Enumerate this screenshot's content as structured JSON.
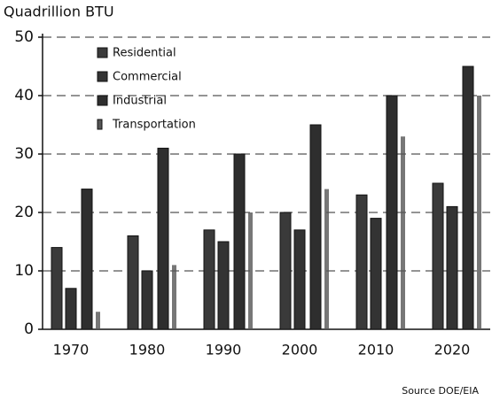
{
  "chart_data": {
    "type": "bar",
    "y_label": "Quadrillion BTU",
    "source": "Source DOE/EIA",
    "categories": [
      "1970",
      "1980",
      "1990",
      "2000",
      "2010",
      "2020"
    ],
    "series": [
      {
        "name": "Residential",
        "color": "#3a3a3a",
        "values": [
          14,
          16,
          17,
          20,
          23,
          25
        ]
      },
      {
        "name": "Commercial",
        "color": "#333333",
        "values": [
          7,
          10,
          15,
          17,
          19,
          21
        ]
      },
      {
        "name": "Industrial",
        "color": "#2e2e2e",
        "values": [
          24,
          31,
          30,
          35,
          40,
          45
        ]
      },
      {
        "name": "Transportation",
        "color": "#555555",
        "values": [
          3,
          11,
          20,
          24,
          33,
          40
        ]
      }
    ],
    "ylim": [
      0,
      50
    ],
    "yticks": [
      0,
      10,
      20,
      30,
      40,
      50
    ],
    "grid": true,
    "legend": "top-left"
  }
}
